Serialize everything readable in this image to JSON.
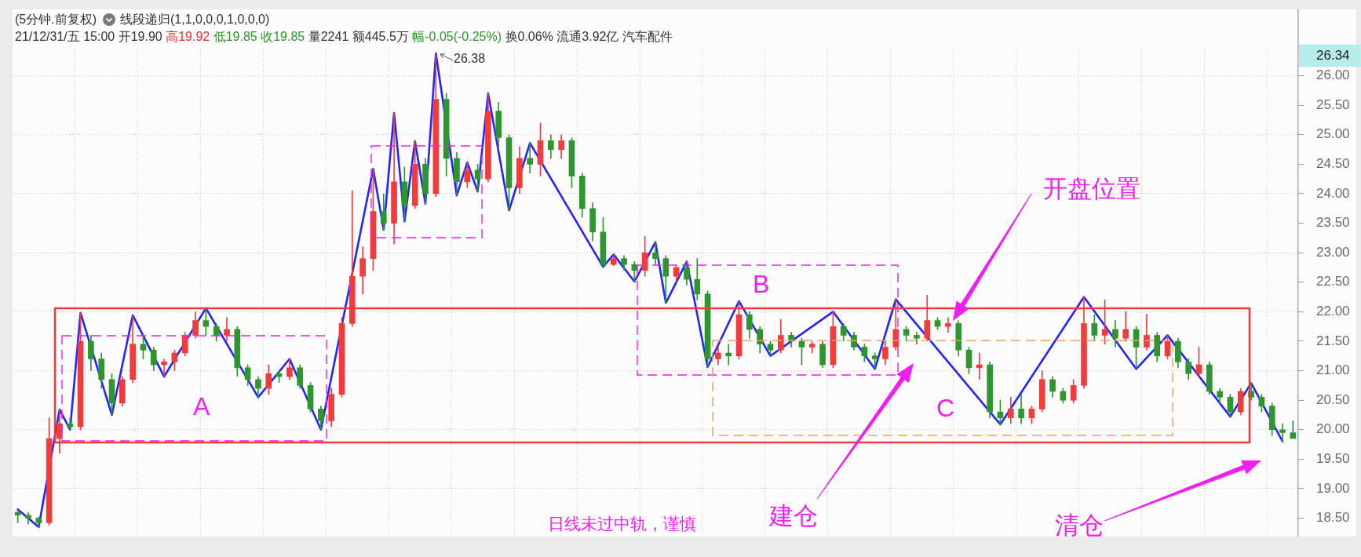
{
  "chart_data": {
    "type": "candlestick",
    "title": "(5分钟.前复权)",
    "subtitle": "线段递归(1,1,0,0,0,1,0,0,0)",
    "categories": [
      null,
      null,
      null,
      null,
      null,
      null,
      null,
      null,
      null,
      null,
      null,
      null,
      null,
      null,
      null,
      null,
      null,
      null,
      null,
      null,
      null,
      null,
      null,
      null,
      null,
      null,
      null,
      null,
      null,
      null,
      null,
      null,
      null,
      null,
      null,
      null,
      null,
      null,
      null,
      null,
      null,
      null,
      null,
      null,
      null,
      null,
      null,
      null,
      null,
      null,
      null,
      null,
      null,
      null,
      null,
      null,
      null,
      null,
      null,
      null,
      null,
      null,
      null,
      null,
      null,
      null,
      null,
      null,
      null,
      null,
      null,
      null,
      null,
      null,
      null,
      null,
      null,
      null,
      null,
      null,
      null,
      null,
      null,
      null,
      null,
      null,
      null,
      null,
      null,
      null,
      null,
      null,
      null,
      null,
      null,
      null,
      null,
      null,
      null,
      null,
      null,
      null,
      null,
      null,
      null,
      null,
      null,
      null,
      null,
      null,
      null,
      null,
      null,
      null,
      null,
      null,
      null,
      null,
      null,
      null,
      null,
      null,
      null
    ],
    "ohlc": [
      [
        18.6,
        18.65,
        18.42,
        18.55
      ],
      [
        18.55,
        18.6,
        18.4,
        18.5
      ],
      [
        18.5,
        18.52,
        18.35,
        18.42
      ],
      [
        18.42,
        20.2,
        18.38,
        19.85
      ],
      [
        19.85,
        20.34,
        19.6,
        20.1
      ],
      [
        20.1,
        20.2,
        20.0,
        20.05
      ],
      [
        20.05,
        21.98,
        20.0,
        21.5
      ],
      [
        21.5,
        21.6,
        21.0,
        21.2
      ],
      [
        21.2,
        21.3,
        20.7,
        20.85
      ],
      [
        20.85,
        20.95,
        20.25,
        20.45
      ],
      [
        20.45,
        20.9,
        20.4,
        20.85
      ],
      [
        20.85,
        21.94,
        20.8,
        21.45
      ],
      [
        21.45,
        21.6,
        21.2,
        21.35
      ],
      [
        21.35,
        21.4,
        21.0,
        21.1
      ],
      [
        21.1,
        21.2,
        20.9,
        21.15
      ],
      [
        21.15,
        21.35,
        21.0,
        21.3
      ],
      [
        21.3,
        21.65,
        21.25,
        21.6
      ],
      [
        21.6,
        22.0,
        21.55,
        21.85
      ],
      [
        21.85,
        22.06,
        21.6,
        21.75
      ],
      [
        21.75,
        21.8,
        21.5,
        21.6
      ],
      [
        21.6,
        21.9,
        21.5,
        21.7
      ],
      [
        21.7,
        21.75,
        20.9,
        21.05
      ],
      [
        21.05,
        21.1,
        20.75,
        20.85
      ],
      [
        20.85,
        20.9,
        20.55,
        20.7
      ],
      [
        20.7,
        21.1,
        20.6,
        20.95
      ],
      [
        20.95,
        21.0,
        20.8,
        20.9
      ],
      [
        20.9,
        21.2,
        20.85,
        21.05
      ],
      [
        21.05,
        21.1,
        20.7,
        20.75
      ],
      [
        20.75,
        20.8,
        20.3,
        20.35
      ],
      [
        20.35,
        20.4,
        20.0,
        20.15
      ],
      [
        20.15,
        20.7,
        20.05,
        20.6
      ],
      [
        20.6,
        21.9,
        20.55,
        21.8
      ],
      [
        21.8,
        24.05,
        21.75,
        22.6
      ],
      [
        22.6,
        23.1,
        22.3,
        22.9
      ],
      [
        22.9,
        24.42,
        22.7,
        23.7
      ],
      [
        23.7,
        24.0,
        23.39,
        23.5
      ],
      [
        23.5,
        25.37,
        23.15,
        24.2
      ],
      [
        24.2,
        24.45,
        23.53,
        23.8
      ],
      [
        23.8,
        24.89,
        23.75,
        24.5
      ],
      [
        24.5,
        24.6,
        23.83,
        24.0
      ],
      [
        24.0,
        26.38,
        23.95,
        25.6
      ],
      [
        25.6,
        25.7,
        24.3,
        24.6
      ],
      [
        24.6,
        24.7,
        23.97,
        24.2
      ],
      [
        24.2,
        24.53,
        24.1,
        24.4
      ],
      [
        24.4,
        24.5,
        24.04,
        24.25
      ],
      [
        24.25,
        25.7,
        24.2,
        25.4
      ],
      [
        25.4,
        25.55,
        24.8,
        24.95
      ],
      [
        24.95,
        25.0,
        23.72,
        24.1
      ],
      [
        24.1,
        24.8,
        24.0,
        24.6
      ],
      [
        24.6,
        24.86,
        24.35,
        24.5
      ],
      [
        24.5,
        25.2,
        24.3,
        24.9
      ],
      [
        24.9,
        25.0,
        24.6,
        24.75
      ],
      [
        24.75,
        25.0,
        24.6,
        24.9
      ],
      [
        24.9,
        24.95,
        24.1,
        24.3
      ],
      [
        24.3,
        24.35,
        23.6,
        23.75
      ],
      [
        23.75,
        23.85,
        23.2,
        23.35
      ],
      [
        23.35,
        23.6,
        22.76,
        22.8
      ],
      [
        22.8,
        22.97,
        22.78,
        22.9
      ],
      [
        22.9,
        22.95,
        22.7,
        22.8
      ],
      [
        22.8,
        22.85,
        22.51,
        22.7
      ],
      [
        22.7,
        23.28,
        22.6,
        23.0
      ],
      [
        23.0,
        23.18,
        22.8,
        22.9
      ],
      [
        22.9,
        22.95,
        22.15,
        22.6
      ],
      [
        22.6,
        22.8,
        22.5,
        22.75
      ],
      [
        22.75,
        22.85,
        22.45,
        22.55
      ],
      [
        22.55,
        22.9,
        22.2,
        22.3
      ],
      [
        22.3,
        22.35,
        21.06,
        21.2
      ],
      [
        21.2,
        21.4,
        21.1,
        21.3
      ],
      [
        21.3,
        21.45,
        21.1,
        21.25
      ],
      [
        21.25,
        22.18,
        21.2,
        21.95
      ],
      [
        21.95,
        22.0,
        21.55,
        21.7
      ],
      [
        21.7,
        21.75,
        21.3,
        21.45
      ],
      [
        21.45,
        21.5,
        21.25,
        21.35
      ],
      [
        21.35,
        21.87,
        21.3,
        21.6
      ],
      [
        21.6,
        21.65,
        21.4,
        21.5
      ],
      [
        21.5,
        21.55,
        21.1,
        21.4
      ],
      [
        21.4,
        21.5,
        21.3,
        21.45
      ],
      [
        21.45,
        21.5,
        21.05,
        21.1
      ],
      [
        21.1,
        22.0,
        21.05,
        21.75
      ],
      [
        21.75,
        21.8,
        21.5,
        21.6
      ],
      [
        21.6,
        21.65,
        21.35,
        21.4
      ],
      [
        21.4,
        21.45,
        21.15,
        21.25
      ],
      [
        21.25,
        21.3,
        21.03,
        21.2
      ],
      [
        21.2,
        21.5,
        21.1,
        21.4
      ],
      [
        21.4,
        22.21,
        21.35,
        21.7
      ],
      [
        21.7,
        21.75,
        21.5,
        21.6
      ],
      [
        21.6,
        21.65,
        21.45,
        21.55
      ],
      [
        21.55,
        22.28,
        21.5,
        21.85
      ],
      [
        21.85,
        21.9,
        21.7,
        21.75
      ],
      [
        21.75,
        21.9,
        21.65,
        21.8
      ],
      [
        21.8,
        21.85,
        21.25,
        21.35
      ],
      [
        21.35,
        21.4,
        20.95,
        21.05
      ],
      [
        21.05,
        21.3,
        20.85,
        21.1
      ],
      [
        21.1,
        21.15,
        20.2,
        20.3
      ],
      [
        20.3,
        20.5,
        20.09,
        20.2
      ],
      [
        20.2,
        20.55,
        20.1,
        20.35
      ],
      [
        20.35,
        20.6,
        20.1,
        20.2
      ],
      [
        20.2,
        20.4,
        20.1,
        20.35
      ],
      [
        20.35,
        21.0,
        20.3,
        20.85
      ],
      [
        20.85,
        20.9,
        20.55,
        20.65
      ],
      [
        20.65,
        20.7,
        20.45,
        20.5
      ],
      [
        20.5,
        20.85,
        20.45,
        20.75
      ],
      [
        20.75,
        22.25,
        20.7,
        21.8
      ],
      [
        21.8,
        21.95,
        21.5,
        21.6
      ],
      [
        21.6,
        22.2,
        21.45,
        21.7
      ],
      [
        21.7,
        21.85,
        21.4,
        21.55
      ],
      [
        21.55,
        22.0,
        21.5,
        21.7
      ],
      [
        21.7,
        21.75,
        21.03,
        21.4
      ],
      [
        21.4,
        21.96,
        21.35,
        21.6
      ],
      [
        21.6,
        21.65,
        21.15,
        21.25
      ],
      [
        21.25,
        21.6,
        21.2,
        21.5
      ],
      [
        21.5,
        21.55,
        21.05,
        21.15
      ],
      [
        21.15,
        21.2,
        20.85,
        20.95
      ],
      [
        20.95,
        21.4,
        20.9,
        21.1
      ],
      [
        21.1,
        21.15,
        20.6,
        20.65
      ],
      [
        20.65,
        20.7,
        20.45,
        20.55
      ],
      [
        20.55,
        20.6,
        20.22,
        20.3
      ],
      [
        20.3,
        20.7,
        20.25,
        20.65
      ],
      [
        20.65,
        20.79,
        20.5,
        20.55
      ],
      [
        20.55,
        20.6,
        20.3,
        20.4
      ],
      [
        20.4,
        20.45,
        19.9,
        20.0
      ],
      [
        20.0,
        20.1,
        19.8,
        19.95
      ],
      [
        19.95,
        20.15,
        19.85,
        19.85
      ]
    ],
    "colors": [
      "#2e962e",
      "#2e962e",
      "#2e962e",
      "#f03c3c",
      "#f03c3c",
      "#2e962e",
      "#f03c3c",
      "#2e962e",
      "#2e962e",
      "#2e962e",
      "#f03c3c",
      "#f03c3c",
      "#2e962e",
      "#2e962e",
      "#f03c3c",
      "#f03c3c",
      "#f03c3c",
      "#f03c3c",
      "#2e962e",
      "#2e962e",
      "#f03c3c",
      "#2e962e",
      "#2e962e",
      "#2e962e",
      "#f03c3c",
      "#2e962e",
      "#f03c3c",
      "#2e962e",
      "#2e962e",
      "#2e962e",
      "#f03c3c",
      "#f03c3c",
      "#f03c3c",
      "#f03c3c",
      "#f03c3c",
      "#2e962e",
      "#f03c3c",
      "#2e962e",
      "#f03c3c",
      "#2e962e",
      "#f03c3c",
      "#2e962e",
      "#2e962e",
      "#f03c3c",
      "#2e962e",
      "#f03c3c",
      "#2e962e",
      "#2e962e",
      "#f03c3c",
      "#2e962e",
      "#f03c3c",
      "#2e962e",
      "#f03c3c",
      "#2e962e",
      "#2e962e",
      "#2e962e",
      "#2e962e",
      "#f03c3c",
      "#2e962e",
      "#2e962e",
      "#f03c3c",
      "#2e962e",
      "#2e962e",
      "#f03c3c",
      "#2e962e",
      "#2e962e",
      "#2e962e",
      "#f03c3c",
      "#2e962e",
      "#f03c3c",
      "#2e962e",
      "#2e962e",
      "#2e962e",
      "#f03c3c",
      "#2e962e",
      "#2e962e",
      "#f03c3c",
      "#2e962e",
      "#f03c3c",
      "#2e962e",
      "#2e962e",
      "#2e962e",
      "#2e962e",
      "#f03c3c",
      "#f03c3c",
      "#2e962e",
      "#2e962e",
      "#f03c3c",
      "#2e962e",
      "#f03c3c",
      "#2e962e",
      "#2e962e",
      "#f03c3c",
      "#2e962e",
      "#2e962e",
      "#f03c3c",
      "#2e962e",
      "#f03c3c",
      "#f03c3c",
      "#2e962e",
      "#2e962e",
      "#f03c3c",
      "#f03c3c",
      "#2e962e",
      "#f03c3c",
      "#2e962e",
      "#f03c3c",
      "#2e962e",
      "#f03c3c",
      "#2e962e",
      "#f03c3c",
      "#2e962e",
      "#2e962e",
      "#f03c3c",
      "#2e962e",
      "#2e962e",
      "#2e962e",
      "#f03c3c",
      "#2e962e",
      "#2e962e",
      "#2e962e",
      "#2e962e",
      "#2e962e"
    ],
    "series": [
      {
        "type": "line",
        "color": "#2323ff",
        "values": [
          18.65,
          null,
          18.35,
          null,
          20.34,
          20.0,
          21.98,
          null,
          null,
          20.25,
          null,
          21.94,
          null,
          null,
          20.9,
          null,
          null,
          null,
          22.06,
          null,
          null,
          null,
          null,
          20.55,
          null,
          null,
          21.2,
          null,
          null,
          20.0,
          null,
          null,
          null,
          null,
          24.42,
          23.39,
          25.37,
          23.53,
          24.89,
          23.83,
          26.38,
          null,
          23.97,
          24.53,
          24.04,
          25.7,
          null,
          23.72,
          null,
          24.86,
          null,
          null,
          null,
          null,
          null,
          null,
          22.76,
          22.97,
          null,
          22.51,
          null,
          23.18,
          22.15,
          null,
          22.85,
          null,
          21.06,
          null,
          null,
          22.18,
          null,
          null,
          21.25,
          null,
          null,
          null,
          null,
          null,
          22.0,
          null,
          null,
          null,
          21.03,
          null,
          22.21,
          null,
          null,
          null,
          null,
          null,
          null,
          null,
          null,
          null,
          20.09,
          null,
          null,
          null,
          null,
          null,
          null,
          null,
          22.25,
          null,
          null,
          null,
          null,
          21.03,
          null,
          null,
          21.6,
          null,
          null,
          null,
          null,
          null,
          20.22,
          null,
          20.79,
          null,
          null,
          19.8,
          null
        ]
      }
    ],
    "ylim": [
      18.19,
      26.46
    ],
    "yticks": [
      {
        "value": 18.5,
        "label": "18.50"
      },
      {
        "value": 19,
        "label": "19.00"
      },
      {
        "value": 19.5,
        "label": "19.50"
      },
      {
        "value": 20,
        "label": "20.00"
      },
      {
        "value": 20.5,
        "label": "20.50"
      },
      {
        "value": 21,
        "label": "21.00"
      },
      {
        "value": 21.5,
        "label": "21.50"
      },
      {
        "value": 22,
        "label": "22.00"
      },
      {
        "value": 22.5,
        "label": "22.50"
      },
      {
        "value": 23,
        "label": "23.00"
      },
      {
        "value": 23.5,
        "label": "23.50"
      },
      {
        "value": 24,
        "label": "24.00"
      },
      {
        "value": 24.5,
        "label": "24.50"
      },
      {
        "value": 25,
        "label": "25.00"
      },
      {
        "value": 25.5,
        "label": "25.50"
      },
      {
        "value": 26,
        "label": "26.00"
      },
      26.34
    ],
    "grid": true,
    "annotations": [
      "21/12/31/五 15:00 开19.90 高19.92 低19.85 收19.85 量2241 额445.5万 幅-0.05(-0.25%) 换0.06% 流通3.92亿 汽车配件",
      "26.38",
      "A",
      "B",
      "C",
      "开盘位置",
      "建仓",
      "清仓",
      "日线未过中轨，谨慎"
    ]
  }
}
